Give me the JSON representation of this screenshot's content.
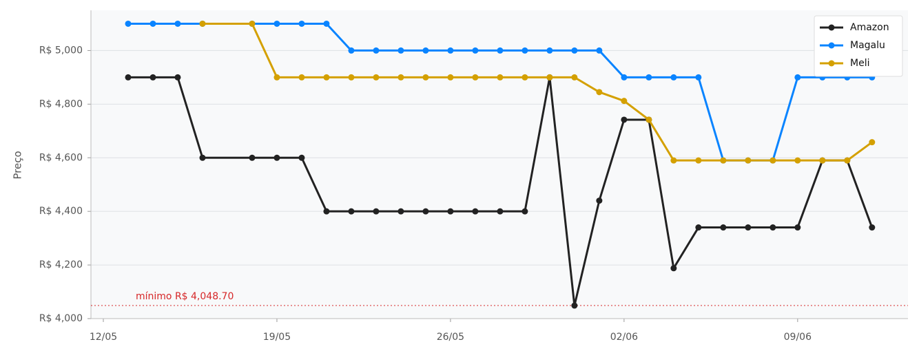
{
  "chart_data": {
    "type": "line",
    "y_label": "Preço",
    "x": [
      "13/05",
      "14/05",
      "15/05",
      "16/05",
      "18/05",
      "19/05",
      "20/05",
      "21/05",
      "22/05",
      "23/05",
      "24/05",
      "25/05",
      "26/05",
      "27/05",
      "28/05",
      "29/05",
      "30/05",
      "31/05",
      "01/06",
      "02/06",
      "03/06",
      "04/06",
      "05/06",
      "06/06",
      "07/06",
      "08/06",
      "09/06",
      "10/06",
      "11/06",
      "12/06"
    ],
    "series": [
      {
        "name": "Amazon",
        "color": "#222222",
        "values": [
          4900,
          4900,
          4900,
          4600,
          4600,
          4600,
          4600,
          4400,
          4400,
          4400,
          4400,
          4400,
          4400,
          4400,
          4400,
          4400,
          4900,
          4048.7,
          4440,
          4742,
          4742,
          4188,
          4340,
          4340,
          4340,
          4340,
          4340,
          4590,
          4590,
          4340
        ]
      },
      {
        "name": "Magalu",
        "color": "#0a84ff",
        "values": [
          5100,
          5100,
          5100,
          5100,
          5100,
          5100,
          5100,
          5100,
          5000,
          5000,
          5000,
          5000,
          5000,
          5000,
          5000,
          5000,
          5000,
          5000,
          5000,
          4900,
          4900,
          4900,
          4900,
          4590,
          4590,
          4590,
          4900,
          4900,
          4900,
          4900
        ]
      },
      {
        "name": "Meli",
        "color": "#d4a000",
        "values": [
          null,
          null,
          null,
          5100,
          5100,
          4900,
          4900,
          4900,
          4900,
          4900,
          4900,
          4900,
          4900,
          4900,
          4900,
          4900,
          4900,
          4900,
          4845,
          4812,
          4742,
          4590,
          4590,
          4590,
          4590,
          4590,
          4590,
          4590,
          4590,
          4658
        ]
      }
    ],
    "ylim": [
      4000,
      5150
    ],
    "yticks": [
      {
        "value": 4000,
        "label": "R$ 4,000"
      },
      {
        "value": 4200,
        "label": "R$ 4,200"
      },
      {
        "value": 4400,
        "label": "R$ 4,400"
      },
      {
        "value": 4600,
        "label": "R$ 4,600"
      },
      {
        "value": 4800,
        "label": "R$ 4,800"
      },
      {
        "value": 5000,
        "label": "R$ 5,000"
      }
    ],
    "xticks": [
      "12/05",
      "19/05",
      "26/05",
      "02/06",
      "09/06"
    ],
    "grid": true,
    "legend": "upper right",
    "min_line": {
      "value": 4048.7,
      "label": "mínimo R$ 4,048.70",
      "color": "#d62728"
    }
  }
}
